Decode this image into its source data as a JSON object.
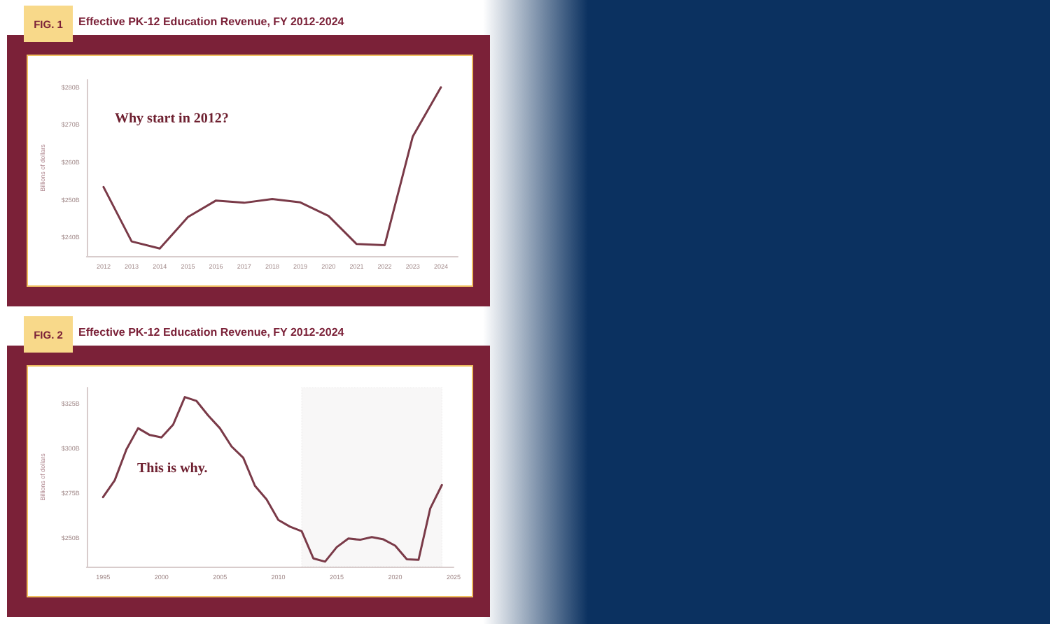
{
  "chart_data": [
    {
      "type": "line",
      "title": "Effective PK-12 Education Revenue, FY 2012-2024",
      "ylabel": "Billions of dollars",
      "annotations": [
        "FIG. 1",
        "Why start in 2012?"
      ],
      "x": [
        2012,
        2013,
        2014,
        2015,
        2016,
        2017,
        2018,
        2019,
        2020,
        2021,
        2022,
        2023,
        2024
      ],
      "series": [
        {
          "color": "#7a3a48",
          "values": [
            253.4,
            238.9,
            237.0,
            245.4,
            249.8,
            249.2,
            250.2,
            249.3,
            245.7,
            238.2,
            237.9,
            266.9,
            280.0
          ]
        }
      ],
      "xlim": [
        2011.4,
        2024.6
      ],
      "xticks": [
        2012,
        2013,
        2014,
        2015,
        2016,
        2017,
        2018,
        2019,
        2020,
        2021,
        2022,
        2023,
        2024
      ],
      "ylim": [
        235,
        282
      ],
      "yticks": [
        {
          "value": 240,
          "label": "$240B"
        },
        {
          "value": 250,
          "label": "$250B"
        },
        {
          "value": 260,
          "label": "$260B"
        },
        {
          "value": 270,
          "label": "$270B"
        },
        {
          "value": 280,
          "label": "$280B"
        }
      ],
      "grid": false,
      "marker": "none",
      "line_style": "solid"
    },
    {
      "type": "line",
      "title": "Effective PK-12 Education Revenue, FY 2012-2024",
      "ylabel": "Billions of dollars",
      "annotations": [
        "FIG. 2",
        "This is why."
      ],
      "x": [
        1995,
        1996,
        1997,
        1998,
        1999,
        2000,
        2001,
        2002,
        2003,
        2004,
        2005,
        2006,
        2007,
        2008,
        2009,
        2010,
        2011,
        2012,
        2013,
        2014,
        2015,
        2016,
        2017,
        2018,
        2019,
        2020,
        2021,
        2022,
        2023,
        2024
      ],
      "series": [
        {
          "color": "#7a3a48",
          "values": [
            272.8,
            282.2,
            299.4,
            311.3,
            307.5,
            306.2,
            313.3,
            328.7,
            326.5,
            318.4,
            311.3,
            301.1,
            294.8,
            279.1,
            271.5,
            260.1,
            256.3,
            253.8,
            238.6,
            236.8,
            244.9,
            249.7,
            249.0,
            250.5,
            249.2,
            245.7,
            238.1,
            237.8,
            266.5,
            279.6
          ]
        }
      ],
      "xlim": [
        1993.6,
        2025
      ],
      "xticks": [
        1995,
        2000,
        2005,
        2010,
        2015,
        2020,
        2025
      ],
      "ylim": [
        234,
        334
      ],
      "yticks": [
        {
          "value": 250,
          "label": "$250B"
        },
        {
          "value": 275,
          "label": "$275B"
        },
        {
          "value": 300,
          "label": "$300B"
        },
        {
          "value": 325,
          "label": "$325B"
        }
      ],
      "bands": [
        {
          "axis": "x",
          "from": 2012,
          "to": 2024,
          "color": "#c8c0c0"
        }
      ],
      "grid": false,
      "marker": "none",
      "line_style": "solid"
    }
  ]
}
